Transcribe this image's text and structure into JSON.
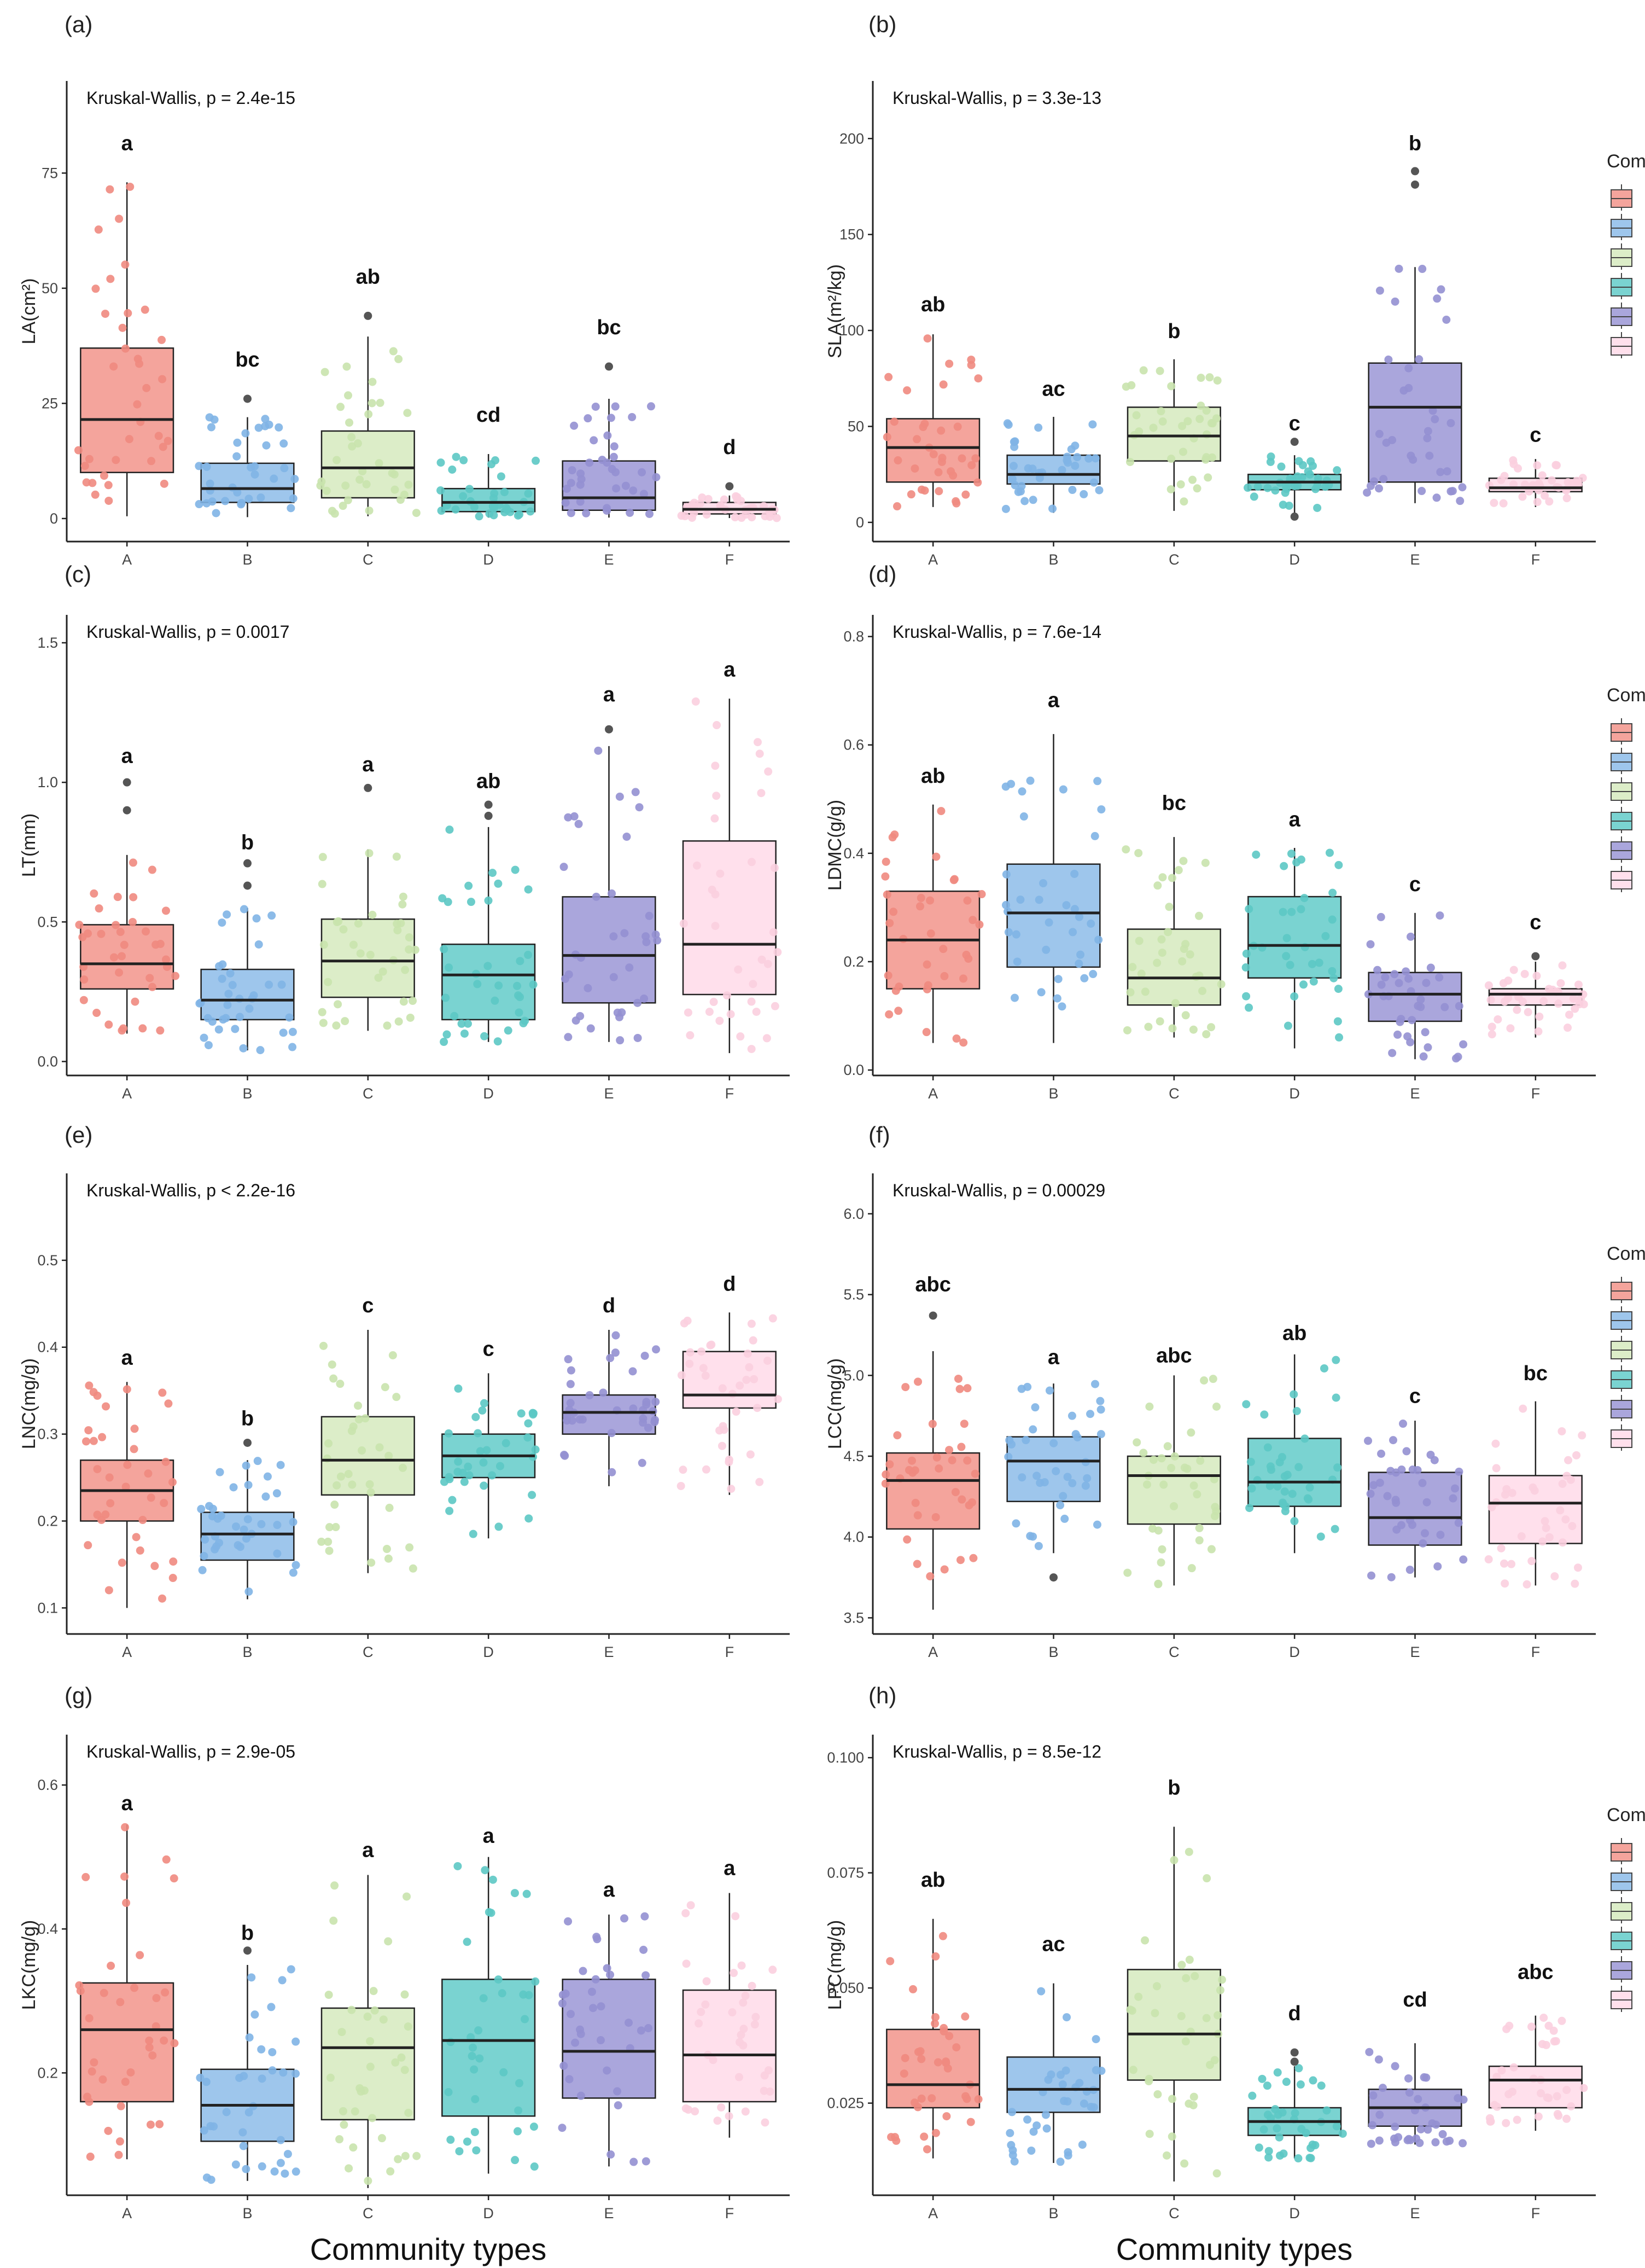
{
  "figure": {
    "x_title": "Community types",
    "legend_title": "Community types",
    "categories": [
      "A",
      "B",
      "C",
      "D",
      "E",
      "F"
    ],
    "colors": {
      "A": "#f4a49c",
      "B": "#9ec6ec",
      "C": "#dcedc8",
      "D": "#7ad3d1",
      "E": "#aaa6dc",
      "F": "#ffe0ec"
    },
    "point_colors": {
      "A": "#f08a80",
      "B": "#7fb4e6",
      "C": "#c9e3ad",
      "D": "#5cc8c4",
      "E": "#9490d2",
      "F": "#fbcfdf"
    }
  },
  "chart_data": [
    {
      "type": "box",
      "panel": "(a)",
      "title": "Kruskal-Wallis, p = 2.4e-15",
      "ylabel": "LA(cm²)",
      "ylim": [
        -5,
        95
      ],
      "yticks": [
        0,
        25,
        50,
        75
      ],
      "ytick_labels": [
        "0",
        "25",
        "50",
        "75"
      ],
      "legend": false,
      "show_xtitle": false,
      "boxes": [
        {
          "category": "A",
          "min": 0.5,
          "q1": 10,
          "median": 21.5,
          "q3": 37,
          "max": 73,
          "outliers": [],
          "letter": "a",
          "letter_y": 80
        },
        {
          "category": "B",
          "min": 0.3,
          "q1": 3.5,
          "median": 6.5,
          "q3": 12,
          "max": 22,
          "outliers": [
            26
          ],
          "letter": "bc",
          "letter_y": 33
        },
        {
          "category": "C",
          "min": 0.5,
          "q1": 4.5,
          "median": 11,
          "q3": 19,
          "max": 39.5,
          "outliers": [
            44
          ],
          "letter": "ab",
          "letter_y": 51
        },
        {
          "category": "D",
          "min": 0.2,
          "q1": 1.5,
          "median": 3.5,
          "q3": 6.5,
          "max": 14,
          "outliers": [],
          "letter": "cd",
          "letter_y": 21
        },
        {
          "category": "E",
          "min": 0.2,
          "q1": 1.8,
          "median": 4.5,
          "q3": 12.5,
          "max": 26,
          "outliers": [
            33
          ],
          "letter": "bc",
          "letter_y": 40
        },
        {
          "category": "F",
          "min": 0.1,
          "q1": 1,
          "median": 2,
          "q3": 3.5,
          "max": 5,
          "outliers": [
            7
          ],
          "letter": "d",
          "letter_y": 14
        }
      ]
    },
    {
      "type": "box",
      "panel": "(b)",
      "title": "Kruskal-Wallis, p = 3.3e-13",
      "ylabel": "SLA(m²/kg)",
      "ylim": [
        -10,
        230
      ],
      "yticks": [
        0,
        50,
        100,
        150,
        200
      ],
      "ytick_labels": [
        "0",
        "50",
        "100",
        "150",
        "200"
      ],
      "legend": true,
      "show_xtitle": false,
      "boxes": [
        {
          "category": "A",
          "min": 8,
          "q1": 21,
          "median": 39,
          "q3": 54,
          "max": 98,
          "outliers": [],
          "letter": "ab",
          "letter_y": 110
        },
        {
          "category": "B",
          "min": 5,
          "q1": 20,
          "median": 25,
          "q3": 35,
          "max": 55,
          "outliers": [],
          "letter": "ac",
          "letter_y": 66
        },
        {
          "category": "C",
          "min": 6,
          "q1": 32,
          "median": 45,
          "q3": 60,
          "max": 85,
          "outliers": [],
          "letter": "b",
          "letter_y": 96
        },
        {
          "category": "D",
          "min": 3,
          "q1": 17,
          "median": 21,
          "q3": 25,
          "max": 35,
          "outliers": [
            3,
            42
          ],
          "letter": "c",
          "letter_y": 48
        },
        {
          "category": "E",
          "min": 10,
          "q1": 21,
          "median": 60,
          "q3": 83,
          "max": 133,
          "outliers": [
            176,
            183
          ],
          "letter": "b",
          "letter_y": 194
        },
        {
          "category": "F",
          "min": 8,
          "q1": 16,
          "median": 18,
          "q3": 23,
          "max": 33,
          "outliers": [],
          "letter": "c",
          "letter_y": 42
        }
      ]
    },
    {
      "type": "box",
      "panel": "(c)",
      "title": "Kruskal-Wallis, p = 0.0017",
      "ylabel": "LT(mm)",
      "ylim": [
        -0.05,
        1.6
      ],
      "yticks": [
        0,
        0.5,
        1.0,
        1.5
      ],
      "ytick_labels": [
        "0.0",
        "0.5",
        "1.0",
        "1.5"
      ],
      "legend": false,
      "show_xtitle": false,
      "boxes": [
        {
          "category": "A",
          "min": 0.1,
          "q1": 0.26,
          "median": 0.35,
          "q3": 0.49,
          "max": 0.74,
          "outliers": [
            0.9,
            1.0
          ],
          "letter": "a",
          "letter_y": 1.07
        },
        {
          "category": "B",
          "min": 0.04,
          "q1": 0.15,
          "median": 0.22,
          "q3": 0.33,
          "max": 0.55,
          "outliers": [
            0.63,
            0.71
          ],
          "letter": "b",
          "letter_y": 0.76
        },
        {
          "category": "C",
          "min": 0.11,
          "q1": 0.23,
          "median": 0.36,
          "q3": 0.51,
          "max": 0.76,
          "outliers": [
            0.98
          ],
          "letter": "a",
          "letter_y": 1.04
        },
        {
          "category": "D",
          "min": 0.07,
          "q1": 0.15,
          "median": 0.31,
          "q3": 0.42,
          "max": 0.84,
          "outliers": [
            0.88,
            0.92
          ],
          "letter": "ab",
          "letter_y": 0.98
        },
        {
          "category": "E",
          "min": 0.07,
          "q1": 0.21,
          "median": 0.38,
          "q3": 0.59,
          "max": 1.13,
          "outliers": [
            1.19
          ],
          "letter": "a",
          "letter_y": 1.29
        },
        {
          "category": "F",
          "min": 0.03,
          "q1": 0.24,
          "median": 0.42,
          "q3": 0.79,
          "max": 1.3,
          "outliers": [],
          "letter": "a",
          "letter_y": 1.38
        }
      ]
    },
    {
      "type": "box",
      "panel": "(d)",
      "title": "Kruskal-Wallis, p = 7.6e-14",
      "ylabel": "LDMC(g/g)",
      "ylim": [
        -0.01,
        0.84
      ],
      "yticks": [
        0,
        0.2,
        0.4,
        0.6,
        0.8
      ],
      "ytick_labels": [
        "0.0",
        "0.2",
        "0.4",
        "0.6",
        "0.8"
      ],
      "legend": true,
      "show_xtitle": false,
      "boxes": [
        {
          "category": "A",
          "min": 0.05,
          "q1": 0.15,
          "median": 0.24,
          "q3": 0.33,
          "max": 0.49,
          "outliers": [],
          "letter": "ab",
          "letter_y": 0.53
        },
        {
          "category": "B",
          "min": 0.05,
          "q1": 0.19,
          "median": 0.29,
          "q3": 0.38,
          "max": 0.62,
          "outliers": [],
          "letter": "a",
          "letter_y": 0.67
        },
        {
          "category": "C",
          "min": 0.06,
          "q1": 0.12,
          "median": 0.17,
          "q3": 0.26,
          "max": 0.43,
          "outliers": [],
          "letter": "bc",
          "letter_y": 0.48
        },
        {
          "category": "D",
          "min": 0.04,
          "q1": 0.17,
          "median": 0.23,
          "q3": 0.32,
          "max": 0.41,
          "outliers": [],
          "letter": "a",
          "letter_y": 0.45
        },
        {
          "category": "E",
          "min": 0.02,
          "q1": 0.09,
          "median": 0.14,
          "q3": 0.18,
          "max": 0.29,
          "outliers": [],
          "letter": "c",
          "letter_y": 0.33
        },
        {
          "category": "F",
          "min": 0.06,
          "q1": 0.12,
          "median": 0.14,
          "q3": 0.15,
          "max": 0.2,
          "outliers": [
            0.21
          ],
          "letter": "c",
          "letter_y": 0.26
        }
      ]
    },
    {
      "type": "box",
      "panel": "(e)",
      "title": "Kruskal-Wallis, p < 2.2e-16",
      "ylabel": "LNC(mg/g)",
      "ylim": [
        0.07,
        0.6
      ],
      "yticks": [
        0.1,
        0.2,
        0.3,
        0.4,
        0.5
      ],
      "ytick_labels": [
        "0.1",
        "0.2",
        "0.3",
        "0.4",
        "0.5"
      ],
      "legend": false,
      "show_xtitle": false,
      "boxes": [
        {
          "category": "A",
          "min": 0.1,
          "q1": 0.2,
          "median": 0.235,
          "q3": 0.27,
          "max": 0.36,
          "outliers": [],
          "letter": "a",
          "letter_y": 0.38
        },
        {
          "category": "B",
          "min": 0.11,
          "q1": 0.155,
          "median": 0.185,
          "q3": 0.21,
          "max": 0.27,
          "outliers": [
            0.29
          ],
          "letter": "b",
          "letter_y": 0.31
        },
        {
          "category": "C",
          "min": 0.14,
          "q1": 0.23,
          "median": 0.27,
          "q3": 0.32,
          "max": 0.42,
          "outliers": [],
          "letter": "c",
          "letter_y": 0.44
        },
        {
          "category": "D",
          "min": 0.18,
          "q1": 0.25,
          "median": 0.275,
          "q3": 0.3,
          "max": 0.37,
          "outliers": [],
          "letter": "c",
          "letter_y": 0.39
        },
        {
          "category": "E",
          "min": 0.24,
          "q1": 0.3,
          "median": 0.325,
          "q3": 0.345,
          "max": 0.42,
          "outliers": [],
          "letter": "d",
          "letter_y": 0.44
        },
        {
          "category": "F",
          "min": 0.23,
          "q1": 0.33,
          "median": 0.345,
          "q3": 0.395,
          "max": 0.44,
          "outliers": [],
          "letter": "d",
          "letter_y": 0.465
        }
      ]
    },
    {
      "type": "box",
      "panel": "(f)",
      "title": "Kruskal-Wallis, p = 0.00029",
      "ylabel": "LCC(mg/g)",
      "ylim": [
        3.4,
        6.25
      ],
      "yticks": [
        3.5,
        4.0,
        4.5,
        5.0,
        5.5,
        6.0
      ],
      "ytick_labels": [
        "3.5",
        "4.0",
        "4.5",
        "5.0",
        "5.5",
        "6.0"
      ],
      "legend": true,
      "show_xtitle": false,
      "boxes": [
        {
          "category": "A",
          "min": 3.55,
          "q1": 4.05,
          "median": 4.35,
          "q3": 4.52,
          "max": 5.15,
          "outliers": [
            5.37
          ],
          "letter": "abc",
          "letter_y": 5.52
        },
        {
          "category": "B",
          "min": 3.9,
          "q1": 4.22,
          "median": 4.47,
          "q3": 4.62,
          "max": 4.95,
          "outliers": [
            3.75
          ],
          "letter": "a",
          "letter_y": 5.07
        },
        {
          "category": "C",
          "min": 3.7,
          "q1": 4.08,
          "median": 4.38,
          "q3": 4.5,
          "max": 5.0,
          "outliers": [],
          "letter": "abc",
          "letter_y": 5.08
        },
        {
          "category": "D",
          "min": 3.9,
          "q1": 4.19,
          "median": 4.34,
          "q3": 4.61,
          "max": 5.13,
          "outliers": [],
          "letter": "ab",
          "letter_y": 5.22
        },
        {
          "category": "E",
          "min": 3.75,
          "q1": 3.95,
          "median": 4.12,
          "q3": 4.4,
          "max": 4.72,
          "outliers": [],
          "letter": "c",
          "letter_y": 4.83
        },
        {
          "category": "F",
          "min": 3.7,
          "q1": 3.96,
          "median": 4.21,
          "q3": 4.38,
          "max": 4.84,
          "outliers": [],
          "letter": "bc",
          "letter_y": 4.97
        }
      ]
    },
    {
      "type": "box",
      "panel": "(g)",
      "title": "Kruskal-Wallis, p = 2.9e-05",
      "ylabel": "LKC(mg/g)",
      "ylim": [
        0.03,
        0.67
      ],
      "yticks": [
        0.2,
        0.4,
        0.6
      ],
      "ytick_labels": [
        "0.2",
        "0.4",
        "0.6"
      ],
      "legend": false,
      "show_xtitle": true,
      "boxes": [
        {
          "category": "A",
          "min": 0.08,
          "q1": 0.16,
          "median": 0.26,
          "q3": 0.325,
          "max": 0.545,
          "outliers": [],
          "letter": "a",
          "letter_y": 0.565
        },
        {
          "category": "B",
          "min": 0.05,
          "q1": 0.105,
          "median": 0.155,
          "q3": 0.205,
          "max": 0.35,
          "outliers": [
            0.37
          ],
          "letter": "b",
          "letter_y": 0.385
        },
        {
          "category": "C",
          "min": 0.04,
          "q1": 0.135,
          "median": 0.235,
          "q3": 0.29,
          "max": 0.475,
          "outliers": [],
          "letter": "a",
          "letter_y": 0.5
        },
        {
          "category": "D",
          "min": 0.06,
          "q1": 0.14,
          "median": 0.245,
          "q3": 0.33,
          "max": 0.5,
          "outliers": [],
          "letter": "a",
          "letter_y": 0.52
        },
        {
          "category": "E",
          "min": 0.07,
          "q1": 0.165,
          "median": 0.23,
          "q3": 0.33,
          "max": 0.42,
          "outliers": [],
          "letter": "a",
          "letter_y": 0.445
        },
        {
          "category": "F",
          "min": 0.11,
          "q1": 0.16,
          "median": 0.225,
          "q3": 0.315,
          "max": 0.45,
          "outliers": [],
          "letter": "a",
          "letter_y": 0.475
        }
      ]
    },
    {
      "type": "box",
      "panel": "(h)",
      "title": "Kruskal-Wallis, p = 8.5e-12",
      "ylabel": "LPC(mg/g)",
      "ylim": [
        0.005,
        0.105
      ],
      "yticks": [
        0.025,
        0.05,
        0.075,
        0.1
      ],
      "ytick_labels": [
        "0.025",
        "0.050",
        "0.075",
        "0.100"
      ],
      "legend": true,
      "show_xtitle": true,
      "boxes": [
        {
          "category": "A",
          "min": 0.013,
          "q1": 0.024,
          "median": 0.029,
          "q3": 0.041,
          "max": 0.065,
          "outliers": [],
          "letter": "ab",
          "letter_y": 0.072
        },
        {
          "category": "B",
          "min": 0.012,
          "q1": 0.023,
          "median": 0.028,
          "q3": 0.035,
          "max": 0.051,
          "outliers": [],
          "letter": "ac",
          "letter_y": 0.058
        },
        {
          "category": "C",
          "min": 0.008,
          "q1": 0.03,
          "median": 0.04,
          "q3": 0.054,
          "max": 0.085,
          "outliers": [],
          "letter": "b",
          "letter_y": 0.092
        },
        {
          "category": "D",
          "min": 0.013,
          "q1": 0.018,
          "median": 0.021,
          "q3": 0.024,
          "max": 0.033,
          "outliers": [
            0.034,
            0.036
          ],
          "letter": "d",
          "letter_y": 0.043
        },
        {
          "category": "E",
          "min": 0.016,
          "q1": 0.02,
          "median": 0.024,
          "q3": 0.028,
          "max": 0.038,
          "outliers": [],
          "letter": "cd",
          "letter_y": 0.046
        },
        {
          "category": "F",
          "min": 0.019,
          "q1": 0.024,
          "median": 0.03,
          "q3": 0.033,
          "max": 0.044,
          "outliers": [],
          "letter": "abc",
          "letter_y": 0.052
        }
      ]
    }
  ]
}
